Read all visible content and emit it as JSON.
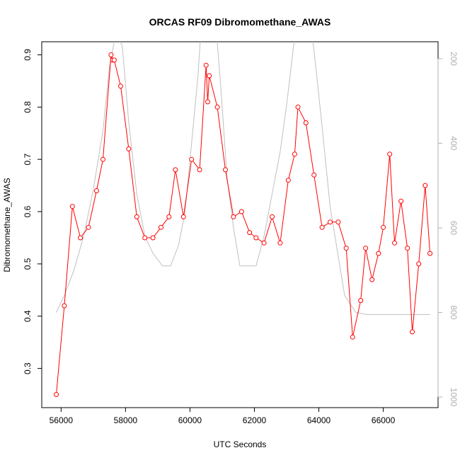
{
  "chart_data": {
    "type": "line",
    "title": "ORCAS RF09 Dibromomethane_AWAS",
    "xlabel": "UTC Seconds",
    "ylabel": "Dibromomethane_AWAS",
    "xlim": [
      55400,
      67700
    ],
    "ylim": [
      0.225,
      0.925
    ],
    "x_ticks": [
      56000,
      58000,
      60000,
      62000,
      64000,
      66000
    ],
    "y_ticks": [
      0.3,
      0.4,
      0.5,
      0.6,
      0.7,
      0.8,
      0.9
    ],
    "y2_ticks": [
      200,
      400,
      600,
      800,
      1000
    ],
    "y2lim": [
      1025,
      160
    ],
    "y2_reversed": true,
    "grid": false,
    "series": [
      {
        "color": "#ff0000",
        "marker": "open-circle",
        "x": [
          55850,
          56100,
          56350,
          56600,
          56850,
          57100,
          57300,
          57550,
          57600,
          57650,
          57850,
          58100,
          58350,
          58600,
          58850,
          59100,
          59350,
          59550,
          59800,
          60050,
          60300,
          60500,
          60550,
          60600,
          60850,
          61100,
          61350,
          61600,
          61850,
          62050,
          62300,
          62550,
          62800,
          63050,
          63250,
          63350,
          63600,
          63850,
          64100,
          64350,
          64600,
          64850,
          65050,
          65300,
          65450,
          65650,
          65850,
          66000,
          66200,
          66350,
          66550,
          66750,
          66900,
          67100,
          67300,
          67450
        ],
        "values": [
          0.25,
          0.42,
          0.61,
          0.55,
          0.57,
          0.64,
          0.7,
          0.9,
          0.89,
          0.89,
          0.84,
          0.72,
          0.59,
          0.55,
          0.55,
          0.57,
          0.59,
          0.68,
          0.59,
          0.7,
          0.68,
          0.88,
          0.81,
          0.86,
          0.8,
          0.68,
          0.59,
          0.6,
          0.56,
          0.55,
          0.54,
          0.59,
          0.54,
          0.66,
          0.71,
          0.8,
          0.77,
          0.67,
          0.57,
          0.58,
          0.58,
          0.53,
          0.36,
          0.43,
          0.53,
          0.47,
          0.52,
          0.57,
          0.71,
          0.54,
          0.62,
          0.53,
          0.37,
          0.5,
          0.65,
          0.52
        ]
      },
      {
        "color": "#c0c0c0",
        "axis": "right",
        "x": [
          55850,
          56100,
          56400,
          56700,
          57000,
          57300,
          57500,
          57700,
          57900,
          58100,
          58350,
          58600,
          58850,
          59150,
          59400,
          59650,
          59850,
          60050,
          60250,
          60350,
          60500,
          60650,
          60800,
          60950,
          61150,
          61350,
          61550,
          61800,
          62050,
          62300,
          62550,
          62800,
          63000,
          63200,
          63350,
          63700,
          63850,
          64100,
          64350,
          64800,
          65150,
          65500,
          66000,
          66500,
          67000,
          67450
        ],
        "values": [
          800,
          760,
          700,
          620,
          510,
          370,
          220,
          140,
          170,
          350,
          520,
          620,
          660,
          690,
          690,
          640,
          560,
          400,
          240,
          120,
          80,
          90,
          120,
          260,
          480,
          600,
          690,
          690,
          690,
          620,
          520,
          420,
          310,
          180,
          100,
          100,
          180,
          360,
          550,
          760,
          800,
          805,
          805,
          805,
          805,
          805
        ]
      }
    ]
  }
}
